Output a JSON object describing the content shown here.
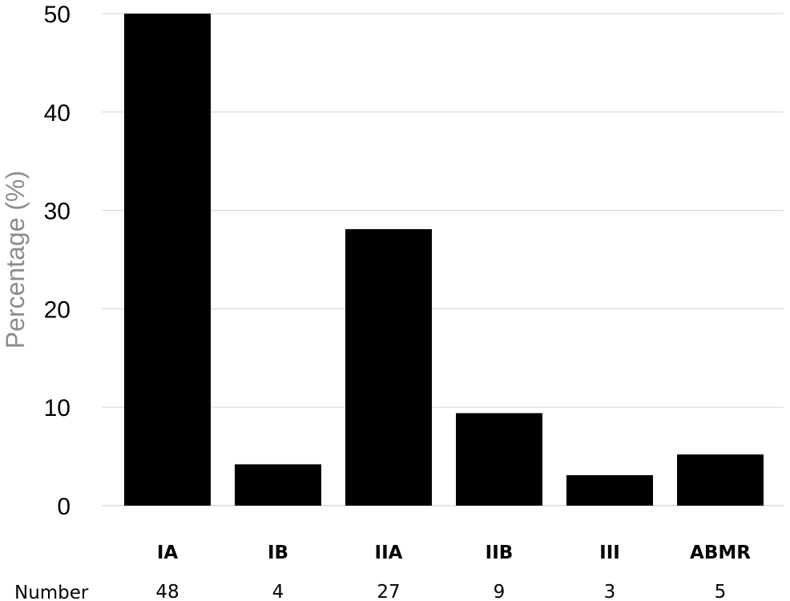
{
  "chart_data": {
    "type": "bar",
    "categories": [
      "IA",
      "IB",
      "IIA",
      "IIB",
      "III",
      "ABMR"
    ],
    "values": [
      50.0,
      4.2,
      28.1,
      9.4,
      3.1,
      5.2
    ],
    "ylabel": "Percentage (%)",
    "xlabel": "",
    "ylim": [
      0,
      50
    ],
    "yticks": [
      0,
      10,
      20,
      30,
      40,
      50
    ],
    "grid": true,
    "bar_color": "#000000",
    "grid_color": "#d9d9d9",
    "ylabel_color": "#8c8c8c",
    "number_row": {
      "label": "Number",
      "values": [
        "48",
        "4",
        "27",
        "9",
        "3",
        "5"
      ]
    }
  }
}
